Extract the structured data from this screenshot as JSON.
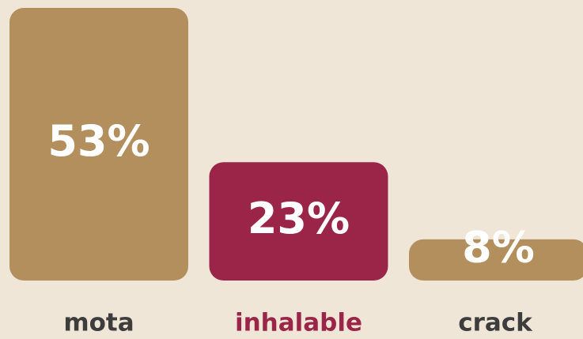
{
  "chart_data": {
    "type": "bar",
    "categories": [
      "mota",
      "inhalable",
      "crack"
    ],
    "values": [
      53,
      23,
      8
    ],
    "value_labels": [
      "53%",
      "23%",
      "8%"
    ],
    "colors": [
      "#b38f5d",
      "#9b2548",
      "#b38f5d"
    ],
    "label_colors": [
      "#3d3d3d",
      "#9b2548",
      "#3d3d3d"
    ]
  }
}
